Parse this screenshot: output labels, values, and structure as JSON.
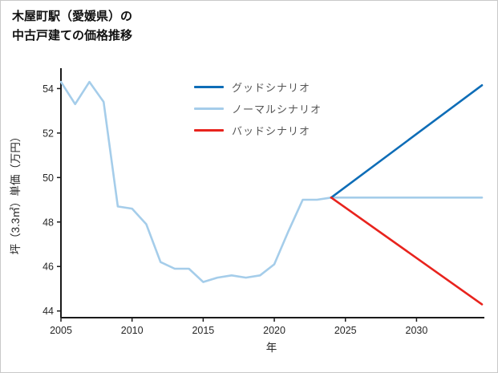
{
  "title": {
    "line1": "木屋町駅（愛媛県）の",
    "line2": "中古戸建ての価格推移"
  },
  "chart_data": {
    "type": "line",
    "title": "木屋町駅（愛媛県）の中古戸建ての価格推移",
    "xlabel": "年",
    "ylabel": "坪（3.3㎡）単価（万円）",
    "xlim": [
      2005,
      2034.6
    ],
    "ylim": [
      43.7,
      54.7
    ],
    "xticks": [
      2005,
      2010,
      2015,
      2020,
      2025,
      2030
    ],
    "yticks": [
      44,
      46,
      48,
      50,
      52,
      54
    ],
    "grid": false,
    "axis_color": "#1a1a1a",
    "legend": {
      "position": "upper-center-inside",
      "text_color": "#555555"
    },
    "series": [
      {
        "name": "グッドシナリオ",
        "key": "good-scenario",
        "color": "#0e6db7",
        "x": [
          2024,
          2034.6
        ],
        "y": [
          49.1,
          54.15
        ]
      },
      {
        "name": "ノーマルシナリオ",
        "key": "normal-scenario",
        "color": "#a5cdea",
        "x": [
          2005,
          2006,
          2007,
          2008,
          2009,
          2010,
          2011,
          2012,
          2013,
          2014,
          2015,
          2016,
          2017,
          2018,
          2019,
          2020,
          2021,
          2022,
          2023,
          2024,
          2034.6
        ],
        "y": [
          54.3,
          53.3,
          54.3,
          53.4,
          48.7,
          48.6,
          47.9,
          46.2,
          45.9,
          45.9,
          45.3,
          45.5,
          45.6,
          45.5,
          45.6,
          46.1,
          47.6,
          49.0,
          49.0,
          49.1,
          49.1
        ]
      },
      {
        "name": "バッドシナリオ",
        "key": "bad-scenario",
        "color": "#e8231d",
        "x": [
          2024,
          2034.6
        ],
        "y": [
          49.1,
          44.3
        ]
      }
    ]
  }
}
